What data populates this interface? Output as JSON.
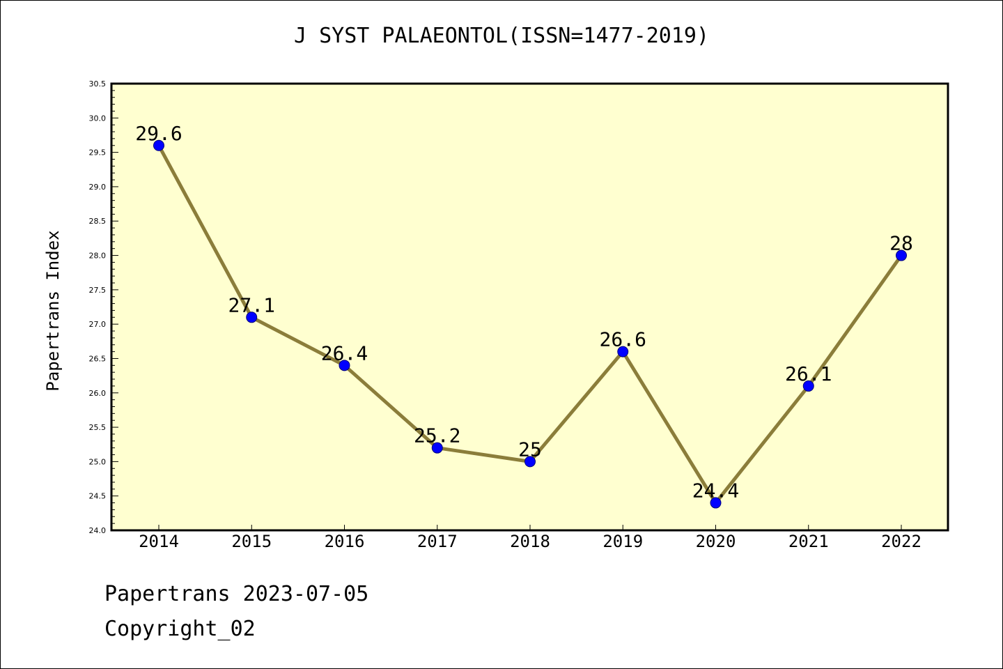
{
  "chart_data": {
    "type": "line",
    "title": "J SYST PALAEONTOL(ISSN=1477-2019)",
    "ylabel": "Papertrans Index",
    "xlabel": "",
    "categories": [
      "2014",
      "2015",
      "2016",
      "2017",
      "2018",
      "2019",
      "2020",
      "2021",
      "2022"
    ],
    "values": [
      29.6,
      27.1,
      26.4,
      25.2,
      25.0,
      26.6,
      24.4,
      26.1,
      28.0
    ],
    "data_labels": [
      "29.6",
      "27.1",
      "26.4",
      "25.2",
      "25",
      "26.6",
      "24.4",
      "26.1",
      "28"
    ],
    "ylim": [
      24.0,
      30.5
    ],
    "yticks": [
      "24.0",
      "24.5",
      "25.0",
      "25.5",
      "26.0",
      "26.5",
      "27.0",
      "27.5",
      "28.0",
      "28.5",
      "29.0",
      "29.5",
      "30.0",
      "30.5"
    ],
    "grid": false,
    "colors": {
      "plot_background": "#ffffd0",
      "line": "#8b7d3a",
      "marker": "#0000ff"
    }
  },
  "footer": {
    "line1": "Papertrans 2023-07-05",
    "line2": "Copyright_02"
  }
}
